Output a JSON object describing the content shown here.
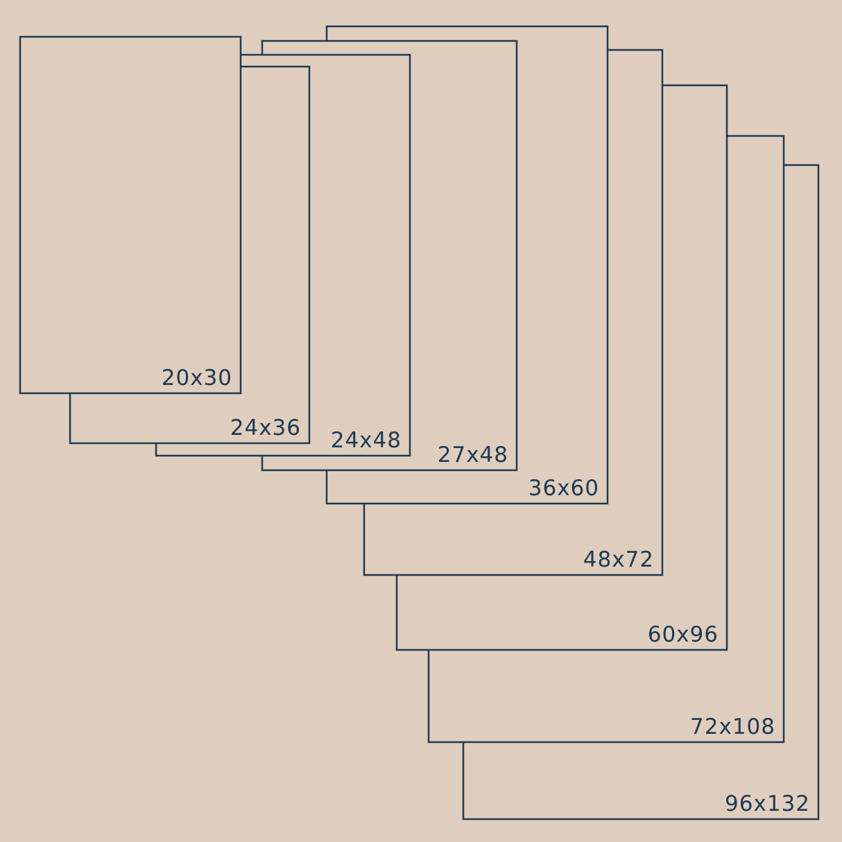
{
  "colors": {
    "background": "#dfcebe",
    "stroke": "#1f3a52"
  },
  "sizes": [
    {
      "label": "96x132"
    },
    {
      "label": "72x108"
    },
    {
      "label": "60x96"
    },
    {
      "label": "48x72"
    },
    {
      "label": "36x60"
    },
    {
      "label": "27x48"
    },
    {
      "label": "24x48"
    },
    {
      "label": "24x36"
    },
    {
      "label": "20x30"
    }
  ]
}
